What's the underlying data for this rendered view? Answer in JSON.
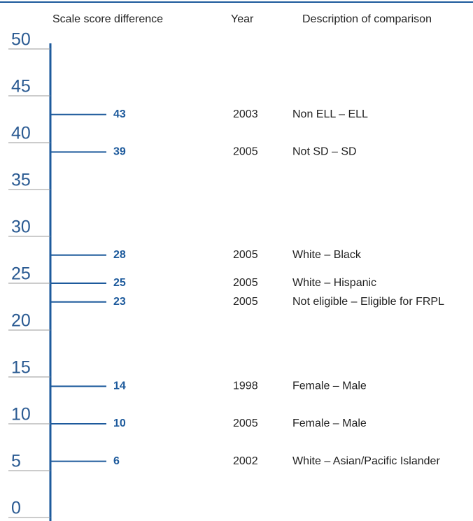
{
  "chart_data": {
    "type": "marker",
    "headers": [
      "Scale score difference",
      "Year",
      "Description of comparison"
    ],
    "values": [
      43,
      39,
      28,
      25,
      23,
      14,
      10,
      6
    ],
    "years": [
      "2003",
      "2005",
      "2005",
      "2005",
      "2005",
      "1998",
      "2005",
      "2002"
    ],
    "descriptions": [
      "Non ELL – ELL",
      "Not SD – SD",
      "White – Black",
      "White – Hispanic",
      "Not eligible – Eligible for FRPL",
      "Female – Male",
      "Female – Male",
      "White – Asian/Pacific Islander"
    ],
    "color": "#1d5a9c",
    "ylim": [
      0,
      50
    ],
    "yticks": [
      0,
      5,
      10,
      15,
      20,
      25,
      30,
      35,
      40,
      45,
      50
    ]
  }
}
